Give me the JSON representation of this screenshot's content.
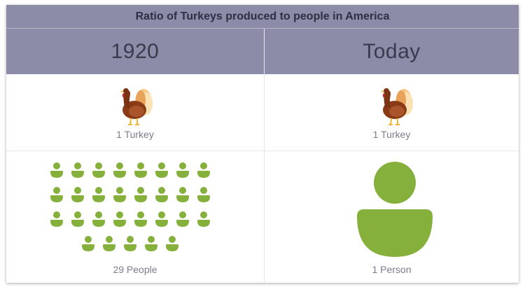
{
  "title": "Ratio of Turkeys produced to people in America",
  "columns": [
    {
      "header": "1920",
      "turkey_label": "1 Turkey",
      "people_label": "29 People",
      "people_count": 29
    },
    {
      "header": "Today",
      "turkey_label": "1 Turkey",
      "people_label": "1 Person",
      "people_count": 1
    }
  ],
  "colors": {
    "header_bg": "#8c8ca8",
    "person_green": "#86b03c",
    "label_gray": "#7b7b8e"
  },
  "icons": {
    "turkey": "turkey-icon",
    "person": "person-icon"
  }
}
